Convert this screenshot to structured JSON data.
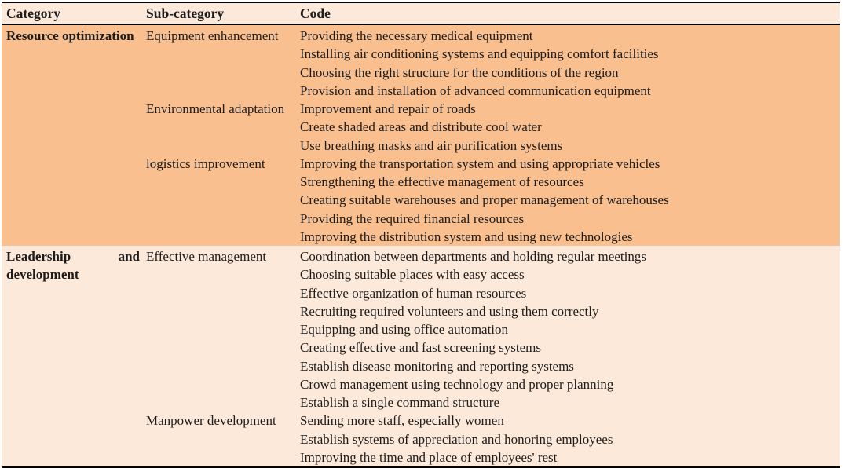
{
  "colors": {
    "header_bg": "#FDE9D9",
    "group_bgs": [
      "#FABF8F",
      "#FDE9D9"
    ],
    "border": "#000000",
    "text": "#1C1C1C"
  },
  "table": {
    "headers": [
      "Category",
      "Sub-category",
      "Code"
    ],
    "groups": [
      {
        "category": "Resource optimization",
        "subgroups": [
          {
            "name": "Equipment enhancement",
            "codes": [
              "Providing the necessary medical equipment",
              "Installing air conditioning systems and equipping comfort facilities",
              "Choosing the right structure for the conditions of the region",
              "Provision and installation of advanced communication equipment"
            ]
          },
          {
            "name": "Environmental adaptation",
            "codes": [
              "Improvement and repair of roads",
              "Create shaded areas and distribute cool water",
              "Use breathing masks and air purification systems"
            ]
          },
          {
            "name": "logistics improvement",
            "codes": [
              "Improving the transportation system and using appropriate vehicles",
              "Strengthening the effective management of resources",
              "Creating suitable warehouses and proper management of warehouses",
              "Providing the required financial resources",
              "Improving the distribution system and using new technologies"
            ]
          }
        ]
      },
      {
        "category": "Leadership and development",
        "subgroups": [
          {
            "name": "Effective management",
            "codes": [
              "Coordination between departments and holding regular meetings",
              "Choosing suitable places with easy access",
              "Effective organization of human resources",
              "Recruiting required volunteers and using them correctly",
              "Equipping and using office automation",
              "Creating effective and fast screening systems",
              "Establish disease monitoring and reporting systems",
              "Crowd management using technology and proper planning",
              "Establish a single command structure"
            ]
          },
          {
            "name": "Manpower development",
            "codes": [
              "Sending more staff, especially women",
              "Establish systems of appreciation and honoring employees",
              "Improving the time and place of employees' rest"
            ]
          }
        ]
      }
    ]
  }
}
